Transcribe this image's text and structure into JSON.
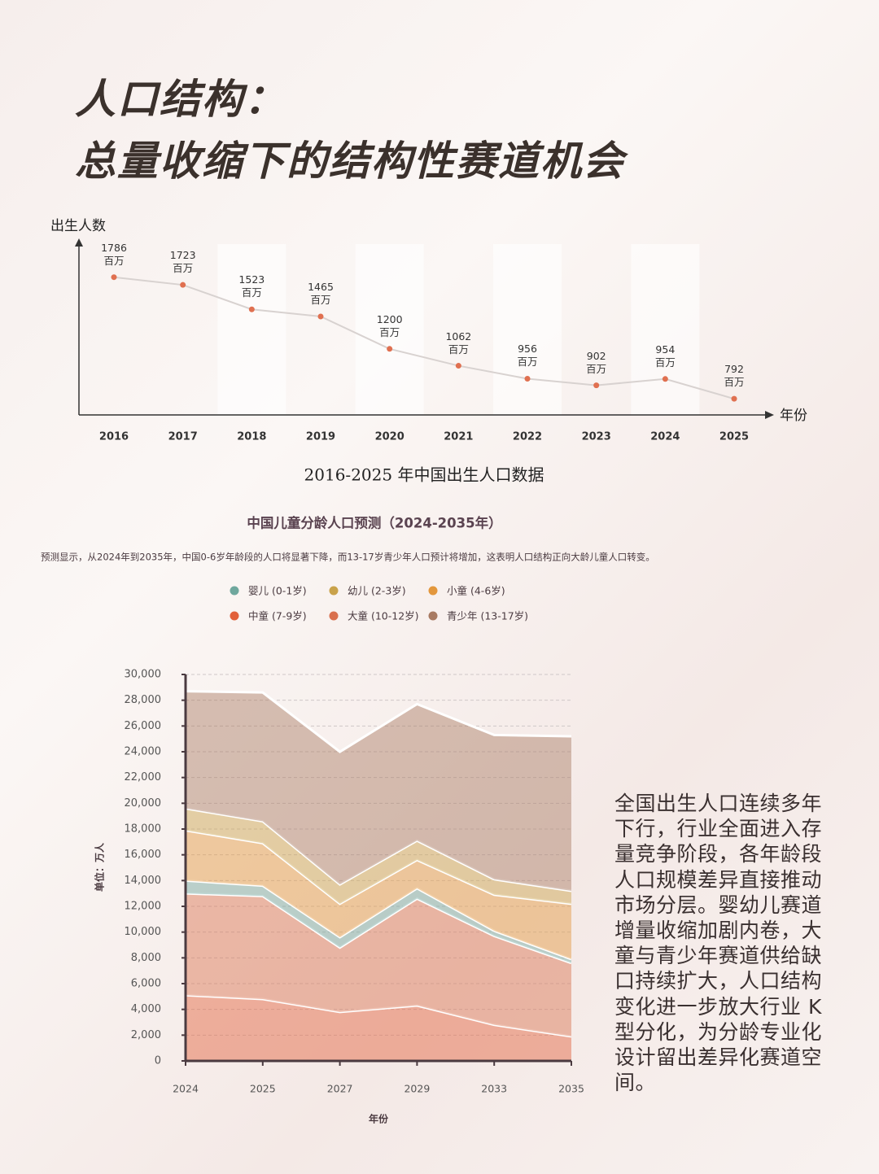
{
  "title": [
    "人口结构：",
    "总量收缩下的结构性赛道机会"
  ],
  "body_text": "全国出生人口连续多年下行，行业全面进入存量竞争阶段，各年龄段人口规模差异直接推动市场分层。婴幼儿赛道增量收缩加剧内卷，大童与青少年赛道供给缺口持续扩大，人口结构变化进一步放大行业 K 型分化，为分龄专业化设计留出差异化赛道空间。",
  "chart_data": [
    {
      "type": "line",
      "title": "2016-2025 年中国出生人口数据",
      "y_label": "出生人数",
      "x_label": "年份",
      "categories": [
        "2016",
        "2017",
        "2018",
        "2019",
        "2020",
        "2021",
        "2022",
        "2023",
        "2024",
        "2025"
      ],
      "values": [
        1786,
        1723,
        1523,
        1465,
        1200,
        1062,
        956,
        902,
        954,
        792
      ],
      "value_labels": [
        "1786\n百万",
        "1723\n百万",
        "1523\n百万",
        "1465\n百万",
        "1200\n百万",
        "1062\n百万",
        "956\n百万",
        "902\n百万",
        "954\n百万",
        "792\n百万"
      ],
      "color": "#e07050",
      "ylim": [
        660,
        2090
      ]
    },
    {
      "type": "stacked_area",
      "title": "中国儿童分龄人口预测（2024-2035年）",
      "subtitle": "预测显示，从2024年到2035年，中国0-6岁年龄段的人口将显著下降，而13-17岁青少年人口预计将增加，这表明人口结构正向大龄儿童人口转变。",
      "y_label": "单位：万人",
      "x_label": "年份",
      "categories": [
        "2024",
        "2025",
        "2027",
        "2029",
        "2033",
        "2035"
      ],
      "series": [
        {
          "name": "婴儿 (0-1岁)",
          "color": "#6fa79d",
          "values": [
            1000,
            800,
            800,
            800,
            400,
            300
          ]
        },
        {
          "name": "幼儿 (2-3岁)",
          "color": "#c9a24a",
          "values": [
            1700,
            1700,
            1500,
            1500,
            1200,
            1000
          ]
        },
        {
          "name": "小童 (4-6岁)",
          "color": "#e3973c",
          "values": [
            3900,
            3300,
            2600,
            2200,
            2800,
            4300
          ]
        },
        {
          "name": "中童 (7-9岁)",
          "color": "#e2603a",
          "values": [
            5100,
            4800,
            3800,
            4300,
            2800,
            1900
          ]
        },
        {
          "name": "大童 (10-12岁)",
          "color": "#d9704e",
          "values": [
            7900,
            8000,
            5000,
            8300,
            6900,
            5700
          ]
        },
        {
          "name": "青少年 (13-17岁)",
          "color": "#a87a62",
          "values": [
            9100,
            10000,
            10300,
            10600,
            11200,
            12000
          ]
        }
      ],
      "ylim": [
        0,
        30000
      ],
      "yticks": [
        0,
        {
          "value": 2000,
          "label": "2,000"
        },
        {
          "value": 4000,
          "label": "4,000"
        },
        {
          "value": 6000,
          "label": "6,000"
        },
        {
          "value": 8000,
          "label": "8,000"
        },
        {
          "value": 10000,
          "label": "10,000"
        },
        {
          "value": 12000,
          "label": "12,000"
        },
        {
          "value": 14000,
          "label": "14,000"
        },
        {
          "value": 16000,
          "label": "16,000"
        },
        {
          "value": 18000,
          "label": "18,000"
        },
        {
          "value": 20000,
          "label": "20,000"
        },
        {
          "value": 22000,
          "label": "22,000"
        },
        {
          "value": 24000,
          "label": "24,000"
        },
        {
          "value": 26000,
          "label": "26,000"
        },
        {
          "value": 28000,
          "label": "28,000"
        },
        {
          "value": 30000,
          "label": "30,000"
        }
      ],
      "grid": true
    }
  ]
}
